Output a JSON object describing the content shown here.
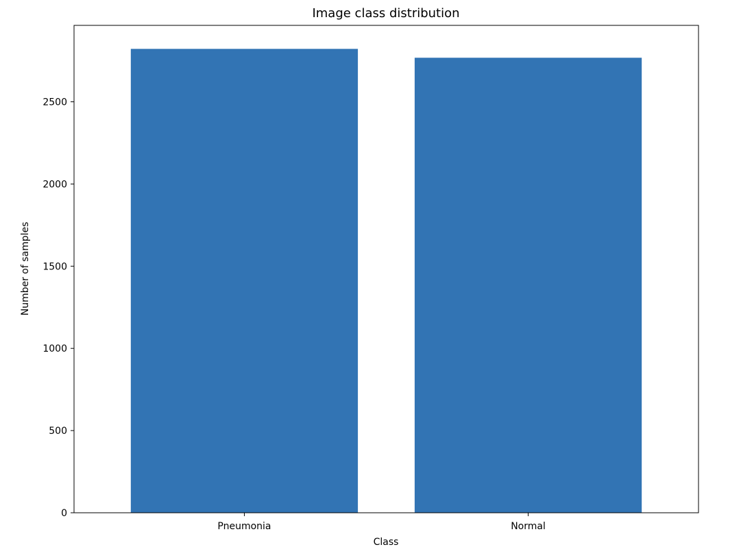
{
  "chart_data": {
    "type": "bar",
    "title": "Image class distribution",
    "xlabel": "Class",
    "ylabel": "Number of samples",
    "categories": [
      "Pneumonia",
      "Normal"
    ],
    "values": [
      2822,
      2768
    ],
    "ylim": [
      0,
      2965
    ],
    "yticks": [
      0,
      500,
      1000,
      1500,
      2000,
      2500
    ],
    "bar_color": "#3274b4",
    "grid": false,
    "legend": "none"
  }
}
